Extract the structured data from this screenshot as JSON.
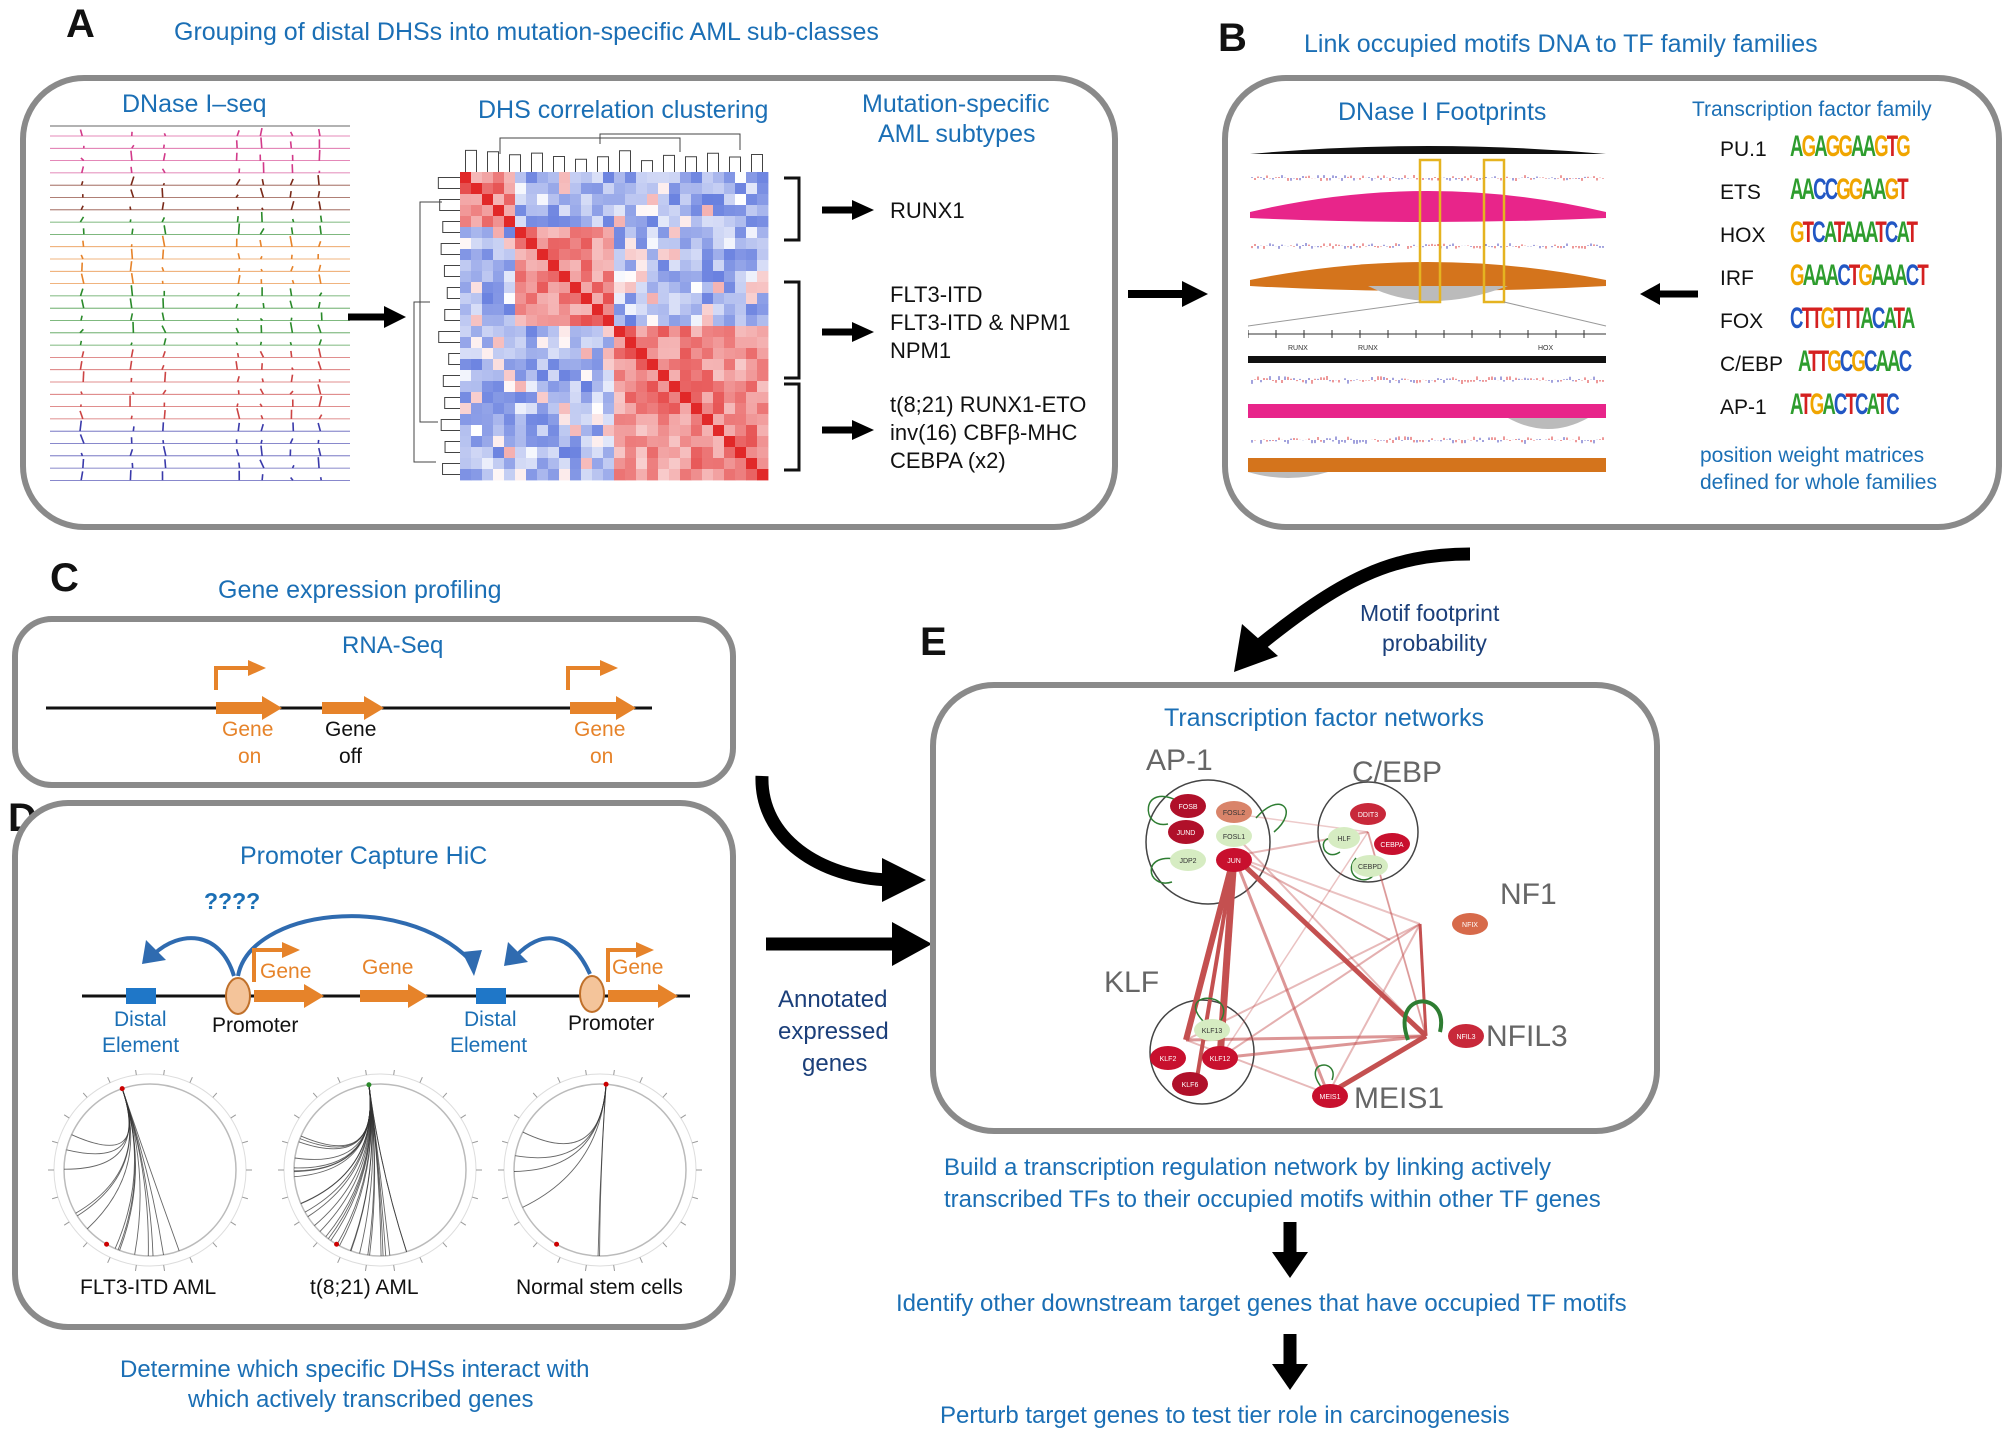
{
  "colors": {
    "blue_text": "#1b6fb5",
    "orange": "#e6832a",
    "box_border": "#8a8a8a",
    "heat_red": "#d62a2a",
    "heat_blue": "#4a5fd6",
    "node_red": "#c8102e",
    "node_green": "#cfe8b5",
    "edge_red": "#c04040",
    "loop_green": "#2e7d32"
  },
  "panelA": {
    "letter": "A",
    "title": "Grouping of distal DHSs into mutation-specific AML sub-classes",
    "dnase_title": "DNase I–seq",
    "cluster_title": "DHS correlation clustering",
    "subtypes_title_line1": "Mutation-specific",
    "subtypes_title_line2": "AML subtypes",
    "groups": [
      {
        "lines": [
          "RUNX1"
        ]
      },
      {
        "lines": [
          "FLT3-ITD",
          "FLT3-ITD & NPM1",
          "NPM1"
        ]
      },
      {
        "lines": [
          "t(8;21) RUNX1-ETO",
          "inv(16) CBFβ-MHC",
          "CEBPA (x2)"
        ]
      }
    ]
  },
  "panelB": {
    "letter": "B",
    "title": "Link occupied motifs DNA  to TF family families",
    "footprints_title": "DNase I Footprints",
    "tf_title": "Transcription factor family",
    "track_labels": [
      "RUNX",
      "RUNX",
      "HOX"
    ],
    "motifs": [
      {
        "family": "PU.1",
        "seq": "AGAGGAAGTG"
      },
      {
        "family": "ETS",
        "seq": "AACCGGAAGT"
      },
      {
        "family": "HOX",
        "seq": "GTCATAAATCAT"
      },
      {
        "family": "IRF",
        "seq": "GAAACTGAAACT"
      },
      {
        "family": "FOX",
        "seq": "CTTGTTTACATA"
      },
      {
        "family": "C/EBP",
        "seq": "ATTGCGCAAC"
      },
      {
        "family": "AP-1",
        "seq": "ATGACTCATC"
      }
    ],
    "pwm_note_line1": "position weight matrices",
    "pwm_note_line2": "defined for whole families"
  },
  "panelC": {
    "letter": "C",
    "title": "Gene expression profiling",
    "box_title": "RNA-Seq",
    "genes": [
      {
        "line1": "Gene",
        "line2": "on",
        "state": "on"
      },
      {
        "line1": "Gene",
        "line2": "off",
        "state": "off"
      },
      {
        "line1": "Gene",
        "line2": "on",
        "state": "on"
      }
    ]
  },
  "panelD": {
    "letter": "D",
    "box_title": "Promoter Capture HiC",
    "question": "????",
    "gene_label": "Gene",
    "distal_line1": "Distal",
    "distal_line2": "Element",
    "promoter_label": "Promoter",
    "circos_labels": [
      "FLT3-ITD AML",
      "t(8;21) AML",
      "Normal stem cells"
    ],
    "caption_line1": "Determine which specific DHSs interact with",
    "caption_line2": "which actively transcribed genes"
  },
  "arrows_to_E": {
    "motif_line1": "Motif footprint",
    "motif_line2": "probability",
    "annot_line1": "Annotated",
    "annot_line2": "expressed",
    "annot_line3": "genes"
  },
  "panelE": {
    "letter": "E",
    "box_title": "Transcription factor networks",
    "clusters": {
      "ap1": "AP-1",
      "cebp": "C/EBP",
      "nf1": "NF1",
      "klf": "KLF",
      "nfil3": "NFIL3",
      "meis1": "MEIS1"
    },
    "nodes": {
      "fosb": "FOSB",
      "fosl2": "FOSL2",
      "jund": "JUND",
      "fosl1": "FOSL1",
      "jdp2": "JDP2",
      "jun": "JUN",
      "ddit3": "DDIT3",
      "hlf": "HLF",
      "cebpa": "CEBPA",
      "cebpd": "CEBPD",
      "nfix": "NFIX",
      "klf13": "KLF13",
      "klf2": "KLF2",
      "klf12": "KLF12",
      "klf6": "KLF6",
      "nfil3n": "NFIL3",
      "meis1n": "MEIS1"
    },
    "step1_line1": "Build a transcription regulation network by linking actively",
    "step1_line2": "transcribed TFs to their occupied motifs within other TF genes",
    "step2": "Identify other downstream target genes that have occupied TF motifs",
    "step3": "Perturb target genes to test tier role in carcinogenesis"
  }
}
